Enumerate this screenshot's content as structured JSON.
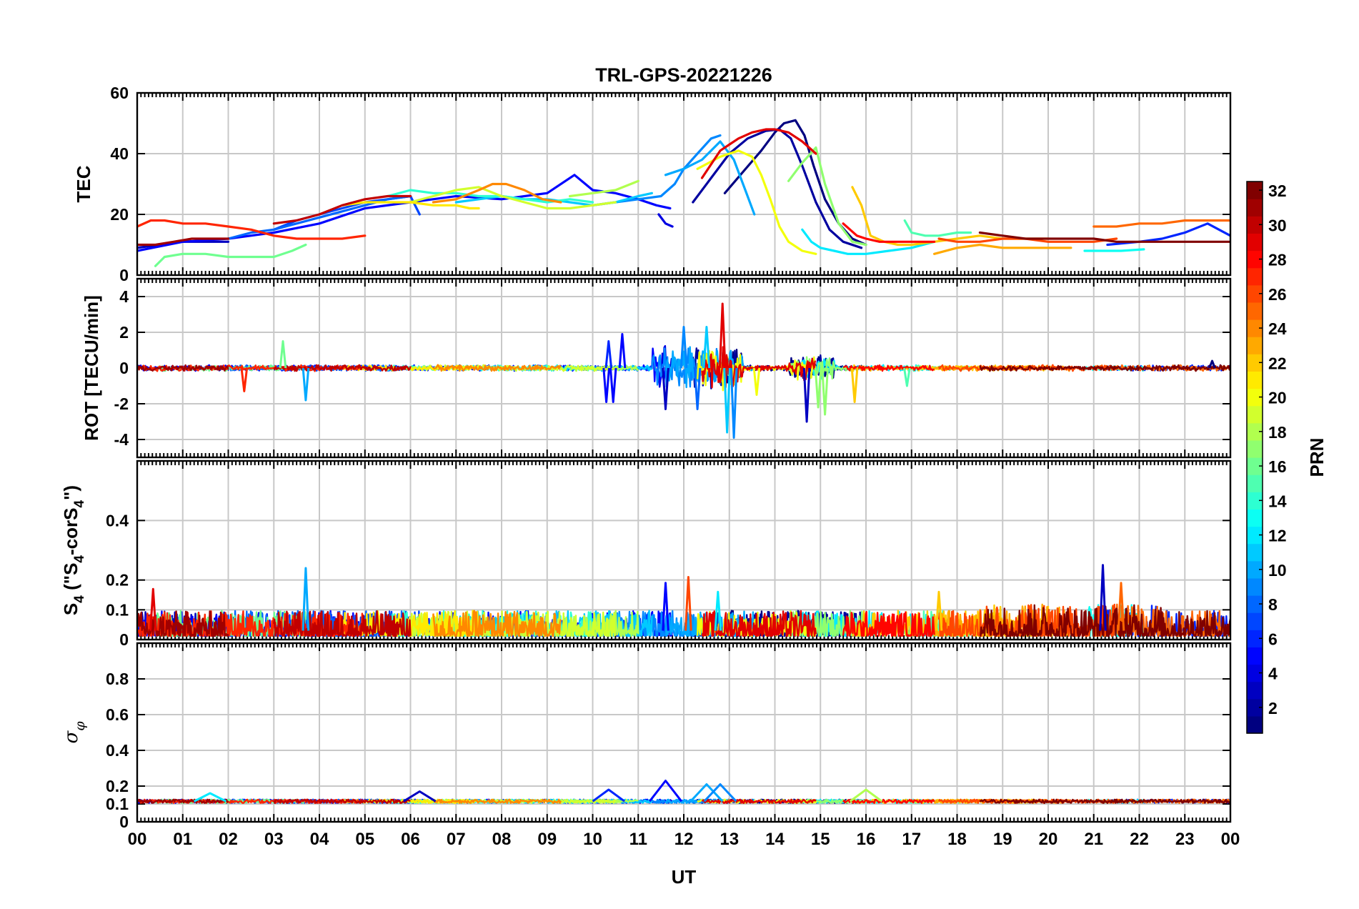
{
  "chart_data": {
    "type": "line",
    "title": "TRL-GPS-20221226",
    "xlabel": "UT",
    "x_tick_labels": [
      "00",
      "01",
      "02",
      "03",
      "04",
      "05",
      "06",
      "07",
      "08",
      "09",
      "10",
      "11",
      "12",
      "13",
      "14",
      "15",
      "16",
      "17",
      "18",
      "19",
      "20",
      "21",
      "22",
      "23",
      "00"
    ],
    "xlim": [
      0,
      24
    ],
    "grid": true,
    "colorbar": {
      "label": "PRN",
      "colormap": "jet",
      "range": [
        1,
        32
      ],
      "tick_labels": [
        "2",
        "4",
        "6",
        "8",
        "10",
        "12",
        "14",
        "16",
        "18",
        "20",
        "22",
        "24",
        "26",
        "28",
        "30",
        "32"
      ]
    },
    "panels": [
      {
        "id": "tec",
        "ylabel": "TEC",
        "ylim": [
          0,
          60
        ],
        "y_tick_labels": [
          "0",
          "20",
          "40",
          "60"
        ],
        "series": [
          {
            "prn": 1,
            "x": [
              12.9,
              13.3,
              13.7,
              14.0,
              14.2,
              14.45,
              14.65,
              14.85,
              15.1,
              15.4,
              15.7,
              16.0
            ],
            "y": [
              27,
              34,
              41,
              47,
              50,
              51,
              46,
              36,
              25,
              17,
              12,
              10
            ]
          },
          {
            "prn": 2,
            "x": [
              12.2,
              12.6,
              13.0,
              13.4,
              13.8,
              14.1,
              14.35,
              14.6,
              14.9,
              15.2,
              15.5,
              15.9
            ],
            "y": [
              24,
              32,
              40,
              45,
              47.5,
              48,
              45,
              36,
              24,
              15,
              11,
              9
            ]
          },
          {
            "prn": 3,
            "x": [
              0,
              0.5,
              1.0,
              1.5,
              2.0
            ],
            "y": [
              9,
              10,
              11,
              11,
              11
            ]
          },
          {
            "prn": 4,
            "x": [
              11.45,
              11.6,
              11.75
            ],
            "y": [
              20,
              17,
              16
            ]
          },
          {
            "prn": 5,
            "x": [
              0,
              1,
              2,
              3,
              4,
              5,
              6,
              7,
              8,
              9,
              9.6,
              10,
              10.5,
              11,
              11.4,
              11.7
            ],
            "y": [
              8,
              11,
              12,
              14,
              17,
              22,
              24,
              26,
              25,
              27,
              33,
              28,
              27,
              25,
              23,
              22
            ]
          },
          {
            "prn": 6,
            "x": [
              21.3,
              22,
              22.5,
              23,
              23.5,
              24
            ],
            "y": [
              10,
              11,
              12,
              14,
              17,
              13
            ]
          },
          {
            "prn": 7,
            "x": [
              3,
              3.5,
              4,
              4.5,
              5,
              5.5,
              6,
              6.2
            ],
            "y": [
              15,
              18,
              20,
              22,
              24,
              25,
              26,
              20
            ]
          },
          {
            "prn": 8,
            "x": [
              2,
              2.5,
              3,
              3.5,
              4,
              4.5,
              5,
              5.5,
              6
            ],
            "y": [
              12,
              14,
              15,
              17,
              19,
              21,
              23,
              25,
              26
            ]
          },
          {
            "prn": 9,
            "x": [
              10,
              10.5,
              11,
              11.5,
              11.8,
              12,
              12.3,
              12.6,
              12.8
            ],
            "y": [
              23,
              24,
              25,
              26,
              30,
              35,
              40,
              45,
              46
            ]
          },
          {
            "prn": 10,
            "x": [
              11.6,
              12,
              12.4,
              12.8,
              13.1,
              13.35,
              13.55
            ],
            "y": [
              33,
              35,
              38,
              44,
              38,
              28,
              20
            ]
          },
          {
            "prn": 11,
            "x": [
              7,
              7.5,
              8,
              8.5,
              9,
              9.5,
              10,
              10.5,
              11,
              11.3
            ],
            "y": [
              24,
              25,
              26,
              25,
              25,
              24,
              23,
              24,
              26,
              27
            ]
          },
          {
            "prn": 12,
            "x": [
              14.6,
              14.8,
              15.0,
              15.3,
              15.6,
              16.0,
              16.5,
              17.0,
              17.5
            ],
            "y": [
              15,
              11,
              9,
              8,
              7,
              7,
              8,
              9,
              11
            ]
          },
          {
            "prn": 13,
            "x": [
              20.8,
              21.2,
              21.6,
              22.1
            ],
            "y": [
              8,
              8,
              8,
              8.5
            ]
          },
          {
            "prn": 14,
            "x": [
              5.5,
              6,
              6.5,
              7,
              7.5,
              8,
              8.5,
              9,
              9.5,
              10
            ],
            "y": [
              26,
              28,
              27,
              27,
              26,
              26,
              25,
              24,
              25,
              24
            ]
          },
          {
            "prn": 15,
            "x": [
              16.85,
              17.0,
              17.3,
              17.6,
              18.0,
              18.3
            ],
            "y": [
              18,
              14,
              13,
              13,
              14,
              14
            ]
          },
          {
            "prn": 16,
            "x": [
              0.4,
              0.6,
              1,
              1.5,
              2,
              2.5,
              3,
              3.4,
              3.7
            ],
            "y": [
              3,
              6,
              7,
              7,
              6,
              6,
              6,
              8,
              10
            ]
          },
          {
            "prn": 17,
            "x": [
              14.3,
              14.6,
              14.9,
              15.1,
              15.4,
              15.7,
              16.0
            ],
            "y": [
              31,
              37,
              42,
              30,
              17,
              11,
              10
            ]
          },
          {
            "prn": 18,
            "x": [
              9.5,
              10,
              10.5,
              11
            ],
            "y": [
              26,
              27,
              28,
              31
            ]
          },
          {
            "prn": 19,
            "x": [
              6,
              6.5,
              7,
              7.5,
              8,
              8.5,
              9,
              9.5,
              10,
              10.5
            ],
            "y": [
              24,
              26,
              28,
              29,
              26,
              24,
              22,
              22,
              23,
              24
            ]
          },
          {
            "prn": 20,
            "x": [
              12.3,
              12.8,
              13.2,
              13.5,
              13.7,
              13.9,
              14.1,
              14.3,
              14.6,
              14.9
            ],
            "y": [
              35,
              39,
              41,
              39,
              33,
              25,
              16,
              11,
              8,
              7
            ]
          },
          {
            "prn": 21,
            "x": [
              4.5,
              5,
              5.5,
              6,
              6.5,
              7,
              7.3,
              7.5
            ],
            "y": [
              23,
              24,
              24,
              24,
              23,
              23,
              22,
              22
            ]
          },
          {
            "prn": 22,
            "x": [
              15.7,
              15.9,
              16.1,
              16.4,
              16.7,
              17.0,
              17.5,
              18.0,
              18.5,
              19.0,
              19.5,
              20.0
            ],
            "y": [
              29,
              23,
              13,
              11,
              10,
              10,
              11,
              12,
              13,
              12,
              12,
              12
            ]
          },
          {
            "prn": 23,
            "x": [
              17.5,
              18.0,
              18.5,
              19.0,
              19.5,
              20.0,
              20.5
            ],
            "y": [
              7,
              9,
              10,
              9,
              9,
              9,
              9
            ]
          },
          {
            "prn": 24,
            "x": [
              6.5,
              7,
              7.5,
              7.8,
              8.1,
              8.5,
              8.9,
              9.3
            ],
            "y": [
              24,
              25,
              28,
              30,
              30,
              28,
              25,
              24
            ]
          },
          {
            "prn": 25,
            "x": [
              21,
              21.5,
              22,
              22.5,
              23,
              23.5,
              24
            ],
            "y": [
              16,
              16,
              17,
              17,
              18,
              18,
              18
            ]
          },
          {
            "prn": 26,
            "x": [
              17.6,
              18.0,
              18.5,
              19.0,
              19.5,
              20.0,
              20.5,
              21.0,
              21.5
            ],
            "y": [
              12,
              11,
              11,
              12,
              12,
              11,
              11,
              11,
              12
            ]
          },
          {
            "prn": 27,
            "x": [
              0,
              0.3,
              0.6,
              1,
              1.5,
              2,
              2.5,
              3,
              3.5,
              4,
              4.5,
              5
            ],
            "y": [
              16,
              18,
              18,
              17,
              17,
              16,
              15,
              13,
              12,
              12,
              12,
              13
            ]
          },
          {
            "prn": 28,
            "x": [
              15.5,
              15.8,
              16.0,
              16.3,
              16.6,
              17.0,
              17.5
            ],
            "y": [
              17,
              13,
              12,
              11,
              11,
              11,
              11
            ]
          },
          {
            "prn": 29,
            "x": [
              12.4,
              12.8,
              13.2,
              13.5,
              13.8,
              14.0,
              14.3,
              14.6,
              14.9
            ],
            "y": [
              32,
              41,
              45,
              47,
              48,
              48,
              47,
              44,
              40
            ]
          },
          {
            "prn": 30,
            "x": [
              3,
              3.5,
              4,
              4.5,
              5,
              5.5,
              6
            ],
            "y": [
              17,
              18,
              20,
              23,
              25,
              26,
              26
            ]
          },
          {
            "prn": 31,
            "x": [
              0,
              0.4,
              0.8,
              1.2,
              1.6,
              2.0
            ],
            "y": [
              10,
              10,
              11,
              12,
              12,
              12
            ]
          },
          {
            "prn": 32,
            "x": [
              18.5,
              19,
              19.5,
              20,
              20.5,
              21,
              21.5,
              22,
              22.5,
              23,
              23.5,
              24
            ],
            "y": [
              14,
              13,
              12,
              12,
              12,
              12,
              11,
              11,
              11,
              11,
              11,
              11
            ]
          }
        ]
      },
      {
        "id": "rot",
        "ylabel": "ROT [TECU/min]",
        "ylim": [
          -5,
          5
        ],
        "y_tick_labels": [
          "-4",
          "-2",
          "0",
          "2",
          "4"
        ],
        "spikes": [
          {
            "prn": 27,
            "x": 2.35,
            "y": -1.3
          },
          {
            "prn": 10,
            "x": 3.7,
            "y": -1.8
          },
          {
            "prn": 16,
            "x": 3.2,
            "y": 1.5
          },
          {
            "prn": 5,
            "x": 10.3,
            "y": -1.9
          },
          {
            "prn": 5,
            "x": 10.45,
            "y": -1.9
          },
          {
            "prn": 6,
            "x": 10.35,
            "y": 1.5
          },
          {
            "prn": 5,
            "x": 10.65,
            "y": 1.9
          },
          {
            "prn": 3,
            "x": 11.6,
            "y": -2.3
          },
          {
            "prn": 9,
            "x": 12.0,
            "y": 2.3
          },
          {
            "prn": 8,
            "x": 12.3,
            "y": -2.3
          },
          {
            "prn": 11,
            "x": 12.5,
            "y": 2.3
          },
          {
            "prn": 29,
            "x": 12.85,
            "y": 3.6
          },
          {
            "prn": 11,
            "x": 12.95,
            "y": -3.6
          },
          {
            "prn": 9,
            "x": 13.1,
            "y": -3.9
          },
          {
            "prn": 20,
            "x": 13.6,
            "y": -1.5
          },
          {
            "prn": 3,
            "x": 14.7,
            "y": -3.0
          },
          {
            "prn": 17,
            "x": 15.1,
            "y": -2.6
          },
          {
            "prn": 17,
            "x": 14.95,
            "y": -2.2
          },
          {
            "prn": 22,
            "x": 15.75,
            "y": -1.9
          },
          {
            "prn": 15,
            "x": 16.9,
            "y": -1.0
          },
          {
            "prn": 1,
            "x": 23.6,
            "y": 0.4
          }
        ]
      },
      {
        "id": "s4",
        "ylabel": "S4 (\"S4-corS4\")",
        "ylabel_parts": [
          "S",
          "4",
          " (\"S",
          "4",
          "-corS",
          "4",
          "\")"
        ],
        "ylim": [
          0,
          0.6
        ],
        "y_tick_labels": [
          "0",
          "0.1",
          "0.2",
          "0.4"
        ],
        "spikes": [
          {
            "prn": 10,
            "x": 3.7,
            "y": 0.24
          },
          {
            "prn": 5,
            "x": 11.6,
            "y": 0.19
          },
          {
            "prn": 26,
            "x": 12.1,
            "y": 0.21
          },
          {
            "prn": 3,
            "x": 21.2,
            "y": 0.25
          },
          {
            "prn": 25,
            "x": 21.6,
            "y": 0.19
          },
          {
            "prn": 29,
            "x": 0.35,
            "y": 0.17
          },
          {
            "prn": 12,
            "x": 12.75,
            "y": 0.16
          },
          {
            "prn": 22,
            "x": 17.6,
            "y": 0.16
          }
        ]
      },
      {
        "id": "sigphi",
        "ylabel": "σφ",
        "ylabel_parts": [
          "σ",
          "φ"
        ],
        "ylim": [
          0,
          1
        ],
        "y_tick_labels": [
          "0",
          "0.1",
          "0.2",
          "0.4",
          "0.6",
          "0.8"
        ],
        "bumps": [
          {
            "prn": 5,
            "x": 11.6,
            "y": 0.23
          },
          {
            "prn": 10,
            "x": 12.5,
            "y": 0.21
          },
          {
            "prn": 9,
            "x": 12.8,
            "y": 0.21
          },
          {
            "prn": 6,
            "x": 10.35,
            "y": 0.18
          },
          {
            "prn": 18,
            "x": 16.0,
            "y": 0.18
          },
          {
            "prn": 3,
            "x": 6.2,
            "y": 0.17
          },
          {
            "prn": 12,
            "x": 1.6,
            "y": 0.16
          }
        ]
      }
    ]
  }
}
